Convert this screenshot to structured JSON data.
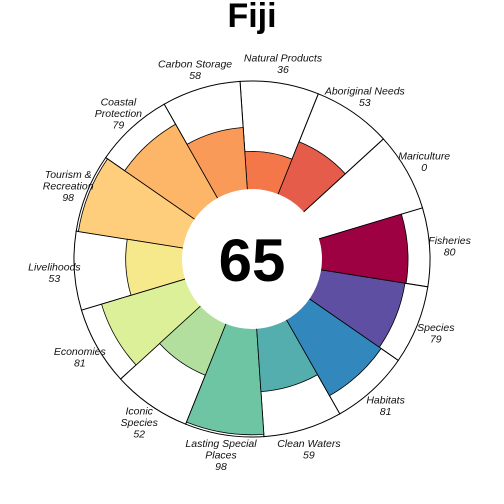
{
  "chart_data": {
    "type": "flower",
    "title": "Fiji",
    "overall_score": "65",
    "max_score": 100,
    "petals": [
      {
        "name": "Fisheries",
        "label_lines": [
          "Fisheries"
        ],
        "value": 80,
        "value_text": "80",
        "color": "#9e0142"
      },
      {
        "name": "Mariculture",
        "label_lines": [
          "Mariculture"
        ],
        "value": 0,
        "value_text": "0",
        "color": "#c0244a"
      },
      {
        "name": "Aboriginal Needs",
        "label_lines": [
          "Aboriginal Needs"
        ],
        "value": 53,
        "value_text": "53",
        "color": "#e55c4a"
      },
      {
        "name": "Natural Products",
        "label_lines": [
          "Natural Products"
        ],
        "value": 36,
        "value_text": "36",
        "color": "#f4774a"
      },
      {
        "name": "Carbon Storage",
        "label_lines": [
          "Carbon Storage"
        ],
        "value": 58,
        "value_text": "58",
        "color": "#fa9a58"
      },
      {
        "name": "Coastal Protection",
        "label_lines": [
          "Coastal",
          "Protection"
        ],
        "value": 79,
        "value_text": "79",
        "color": "#fdb567"
      },
      {
        "name": "Tourism & Recreation",
        "label_lines": [
          "Tourism &",
          "Recreation"
        ],
        "value": 98,
        "value_text": "98",
        "color": "#fece7c"
      },
      {
        "name": "Livelihoods",
        "label_lines": [
          "Livelihoods"
        ],
        "value": 53,
        "value_text": "53",
        "color": "#f6e98b"
      },
      {
        "name": "Economies",
        "label_lines": [
          "Economies"
        ],
        "value": 81,
        "value_text": "81",
        "color": "#dcef99"
      },
      {
        "name": "Iconic Species",
        "label_lines": [
          "Iconic",
          "Species"
        ],
        "value": 52,
        "value_text": "52",
        "color": "#b2df9e"
      },
      {
        "name": "Lasting Special Places",
        "label_lines": [
          "Lasting Special",
          "Places"
        ],
        "value": 98,
        "value_text": "98",
        "color": "#6ec5a4"
      },
      {
        "name": "Clean Waters",
        "label_lines": [
          "Clean Waters"
        ],
        "value": 59,
        "value_text": "59",
        "color": "#54aeae"
      },
      {
        "name": "Habitats",
        "label_lines": [
          "Habitats"
        ],
        "value": 81,
        "value_text": "81",
        "color": "#3288bd"
      },
      {
        "name": "Species",
        "label_lines": [
          "Species"
        ],
        "value": 79,
        "value_text": "79",
        "color": "#5e4fa2"
      }
    ]
  }
}
